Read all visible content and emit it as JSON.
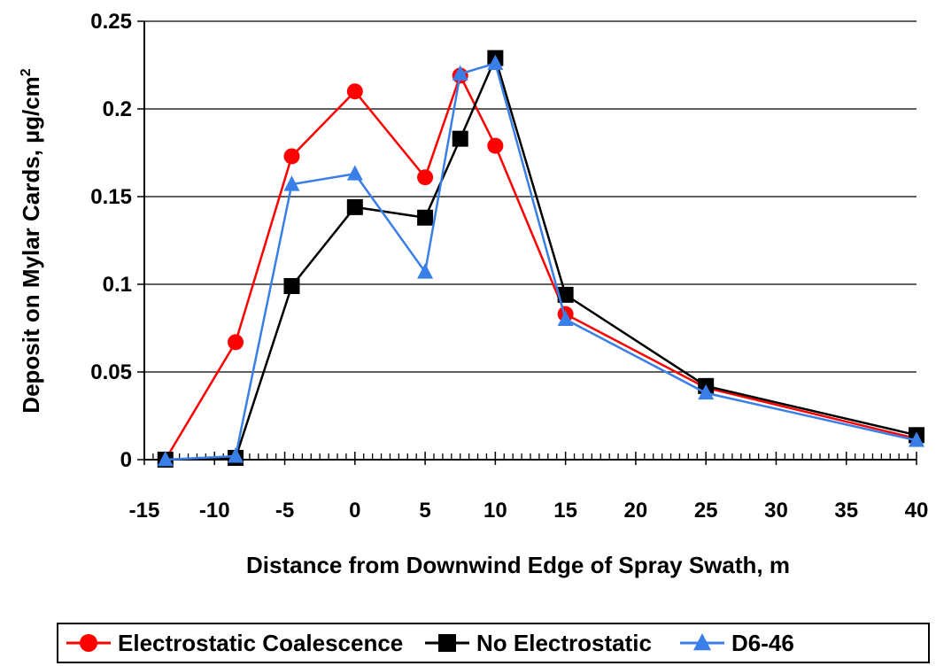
{
  "chart_data": {
    "type": "line",
    "title": "",
    "xlabel": "Distance from Downwind Edge of Spray Swath, m",
    "ylabel_main": "Deposit on Mylar Cards, µg/cm",
    "ylabel_sup": "2",
    "x_ticks": [
      "-15",
      "-10",
      "-5",
      "0",
      "5",
      "10",
      "15",
      "20",
      "25",
      "30",
      "35",
      "40"
    ],
    "y_ticks": [
      "0",
      "0.05",
      "0.1",
      "0.15",
      "0.2",
      "0.25"
    ],
    "ylim": [
      0,
      0.25
    ],
    "grid": true,
    "legend_position": "bottom",
    "series": [
      {
        "name": "Electrostatic Coalescence",
        "color": "#ff0000",
        "marker": "circle",
        "values": [
          0.0,
          0.067,
          0.173,
          0.21,
          0.161,
          0.219,
          0.179,
          0.083,
          0.041,
          0.012
        ]
      },
      {
        "name": "No Electrostatic",
        "color": "#000000",
        "marker": "square",
        "values": [
          0.0,
          0.001,
          0.099,
          0.144,
          0.138,
          0.183,
          0.229,
          0.094,
          0.042,
          0.014
        ]
      },
      {
        "name": "D6-46",
        "color": "#3a7fe8",
        "marker": "triangle",
        "values": [
          0.0,
          0.002,
          0.157,
          0.163,
          0.107,
          0.22,
          0.226,
          0.08,
          0.038,
          0.011
        ]
      }
    ]
  }
}
